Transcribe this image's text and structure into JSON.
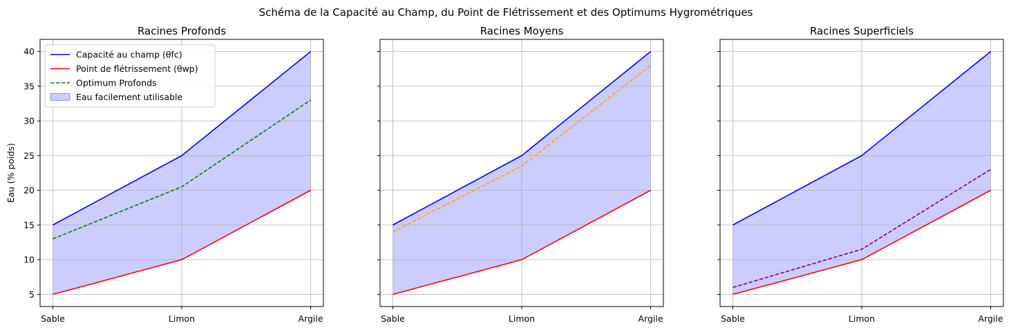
{
  "figure_title": "Schéma de la Capacité au Champ, du Point de Flétrissement et des Optimums Hygrométriques",
  "chart_data": [
    {
      "type": "line",
      "title": "Racines Profonds",
      "xlabel": "",
      "ylabel": "Eau (% poids)",
      "categories": [
        "Sable",
        "Limon",
        "Argile"
      ],
      "ylim": [
        3.25,
        41.75
      ],
      "yticks": [
        5,
        10,
        15,
        20,
        25,
        30,
        35,
        40
      ],
      "grid": true,
      "legend_position": "top-left",
      "fill_between": {
        "name": "Eau facilement utilisable",
        "lower": "Point de flétrissement (θwp)",
        "upper": "Capacité au champ (θfc)",
        "color": "#0000ff",
        "alpha": 0.2
      },
      "series": [
        {
          "name": "Capacité au champ (θfc)",
          "values": [
            15,
            25,
            40
          ],
          "color": "#0000ff",
          "style": "solid"
        },
        {
          "name": "Point de flétrissement (θwp)",
          "values": [
            5,
            10,
            20
          ],
          "color": "#ff0000",
          "style": "solid"
        },
        {
          "name": "Optimum Profonds",
          "values": [
            13,
            20.5,
            33
          ],
          "color": "#008000",
          "style": "dashed"
        }
      ]
    },
    {
      "type": "line",
      "title": "Racines Moyens",
      "xlabel": "",
      "ylabel": "",
      "categories": [
        "Sable",
        "Limon",
        "Argile"
      ],
      "ylim": [
        3.25,
        41.75
      ],
      "yticks": [
        5,
        10,
        15,
        20,
        25,
        30,
        35,
        40
      ],
      "grid": true,
      "fill_between": {
        "lower": "θwp",
        "upper": "θfc",
        "color": "#0000ff",
        "alpha": 0.2
      },
      "series": [
        {
          "values": [
            15,
            25,
            40
          ],
          "color": "#0000ff",
          "style": "solid"
        },
        {
          "values": [
            5,
            10,
            20
          ],
          "color": "#ff0000",
          "style": "solid"
        },
        {
          "values": [
            14,
            23.5,
            38
          ],
          "color": "#ffa500",
          "style": "dashed"
        }
      ]
    },
    {
      "type": "line",
      "title": "Racines Superficiels",
      "xlabel": "",
      "ylabel": "",
      "categories": [
        "Sable",
        "Limon",
        "Argile"
      ],
      "ylim": [
        3.25,
        41.75
      ],
      "yticks": [
        5,
        10,
        15,
        20,
        25,
        30,
        35,
        40
      ],
      "grid": true,
      "fill_between": {
        "lower": "θwp",
        "upper": "θfc",
        "color": "#0000ff",
        "alpha": 0.2
      },
      "series": [
        {
          "values": [
            15,
            25,
            40
          ],
          "color": "#0000ff",
          "style": "solid"
        },
        {
          "values": [
            5,
            10,
            20
          ],
          "color": "#ff0000",
          "style": "solid"
        },
        {
          "values": [
            6,
            11.5,
            23
          ],
          "color": "#800080",
          "style": "dashed"
        }
      ]
    }
  ]
}
